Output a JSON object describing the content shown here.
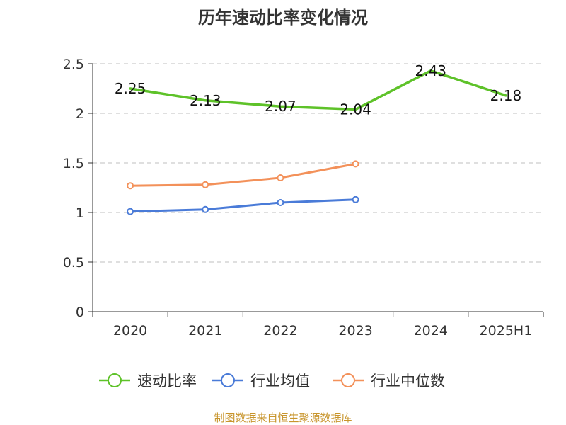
{
  "chart_data": {
    "type": "line",
    "title": "历年速动比率变化情况",
    "categories": [
      "2020",
      "2021",
      "2022",
      "2023",
      "2024",
      "2025H1"
    ],
    "ylim": [
      0,
      2.5
    ],
    "yticks": [
      "0",
      "0.5",
      "1",
      "1.5",
      "2",
      "2.5"
    ],
    "grid": "horizontal-dashed",
    "legend_position": "bottom",
    "series": [
      {
        "name": "速动比率",
        "color": "#5ec229",
        "values": [
          2.25,
          2.13,
          2.07,
          2.04,
          2.43,
          2.18
        ],
        "labels": [
          "2.25",
          "2.13",
          "2.07",
          "2.04",
          "2.43",
          "2.18"
        ]
      },
      {
        "name": "行业均值",
        "color": "#4a7bd8",
        "values": [
          1.01,
          1.03,
          1.1,
          1.13,
          null,
          null
        ]
      },
      {
        "name": "行业中位数",
        "color": "#f3915a",
        "values": [
          1.27,
          1.28,
          1.35,
          1.49,
          null,
          null
        ]
      }
    ],
    "source": "制图数据来自恒生聚源数据库"
  }
}
